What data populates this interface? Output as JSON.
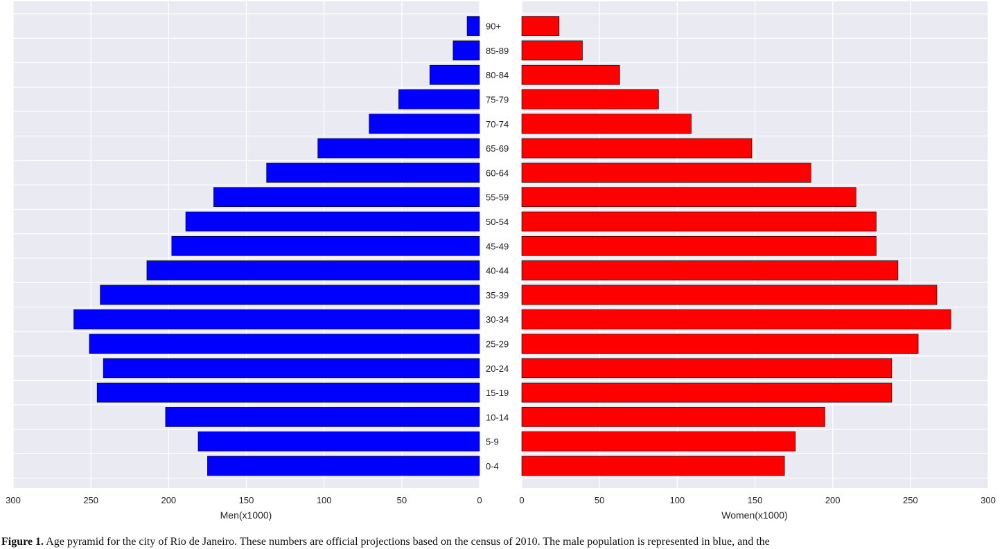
{
  "chart_data": {
    "type": "bar",
    "orientation": "horizontal",
    "layout": "population-pyramid",
    "categories": [
      "0-4",
      "5-9",
      "10-14",
      "15-19",
      "20-24",
      "25-29",
      "30-34",
      "35-39",
      "40-44",
      "45-49",
      "50-54",
      "55-59",
      "60-64",
      "65-69",
      "70-74",
      "75-79",
      "80-84",
      "85-89",
      "90+"
    ],
    "series": [
      {
        "name": "Men",
        "color": "#0000ff",
        "values": [
          175,
          181,
          202,
          246,
          242,
          251,
          261,
          244,
          214,
          198,
          189,
          171,
          137,
          104,
          71,
          52,
          32,
          17,
          8
        ]
      },
      {
        "name": "Women",
        "color": "#ff0000",
        "values": [
          169,
          176,
          195,
          238,
          238,
          255,
          276,
          267,
          242,
          228,
          228,
          215,
          186,
          148,
          109,
          88,
          63,
          39,
          24
        ]
      }
    ],
    "left_panel": {
      "xlabel": "Men(x1000)",
      "xlim": [
        300,
        0
      ],
      "ticks": [
        300,
        250,
        200,
        150,
        100,
        50,
        0
      ]
    },
    "right_panel": {
      "xlabel": "Women(x1000)",
      "xlim": [
        0,
        300
      ],
      "ticks": [
        0,
        50,
        100,
        150,
        200,
        250,
        300
      ]
    },
    "grid": true,
    "background": "#eaeaf2"
  },
  "caption": {
    "label": "Figure 1.",
    "text": "Age pyramid for the city of Rio de Janeiro. These numbers are official projections based on the census of 2010. The male population is represented in blue, and the"
  }
}
